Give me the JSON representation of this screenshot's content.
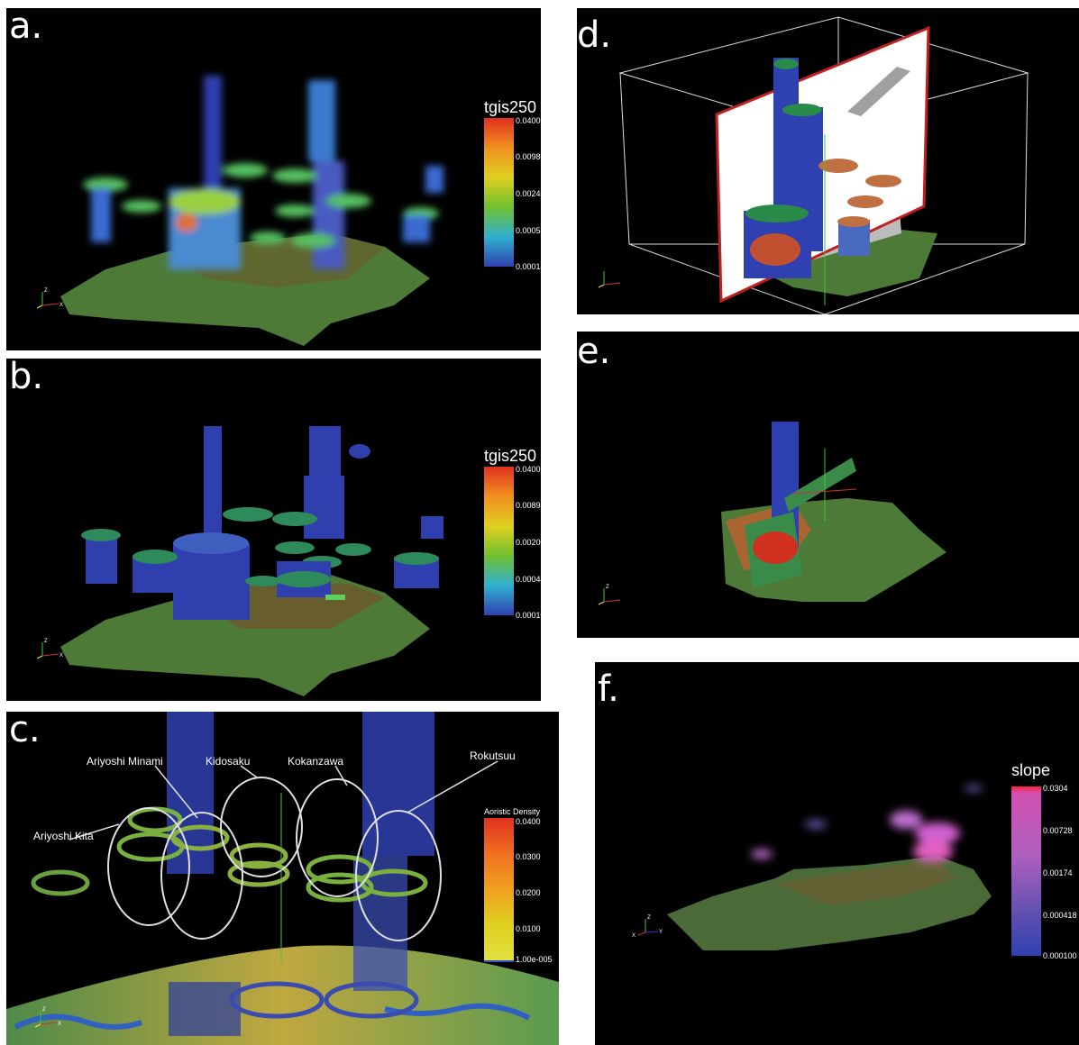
{
  "panels": {
    "a": {
      "letter": "a.",
      "colorbar": {
        "title": "tgis250",
        "ticks": [
          "0.0400",
          "0.00980",
          "0.00240",
          "0.000589",
          "0.000144"
        ]
      }
    },
    "b": {
      "letter": "b.",
      "colorbar": {
        "title": "tgis250",
        "ticks": [
          "0.0400",
          "0.00894",
          "0.00200",
          "0.000447",
          "0.000100"
        ]
      }
    },
    "c": {
      "letter": "c.",
      "colorbar": {
        "title": "Aoristic Density",
        "ticks": [
          "0.0400",
          "0.0300",
          "0.0200",
          "0.0100",
          "1.00e-005"
        ]
      },
      "sites": [
        "Ariyoshi Minami",
        "Kidosaku",
        "Kokanzawa",
        "Rokutsuu",
        "Ariyoshi Kita"
      ]
    },
    "d": {
      "letter": "d."
    },
    "e": {
      "letter": "e."
    },
    "f": {
      "letter": "f.",
      "colorbar": {
        "title": "slope",
        "ticks": [
          "0.0304",
          "0.00728",
          "0.00174",
          "0.000418",
          "0.000100"
        ]
      }
    }
  },
  "axes": {
    "z": "Z",
    "x": "X",
    "y": "Y"
  },
  "colors": {
    "terrain": "#4f7a3a",
    "cylinder": "#2a3ea8",
    "hot": "#e03020",
    "slope": "#c070d0"
  }
}
